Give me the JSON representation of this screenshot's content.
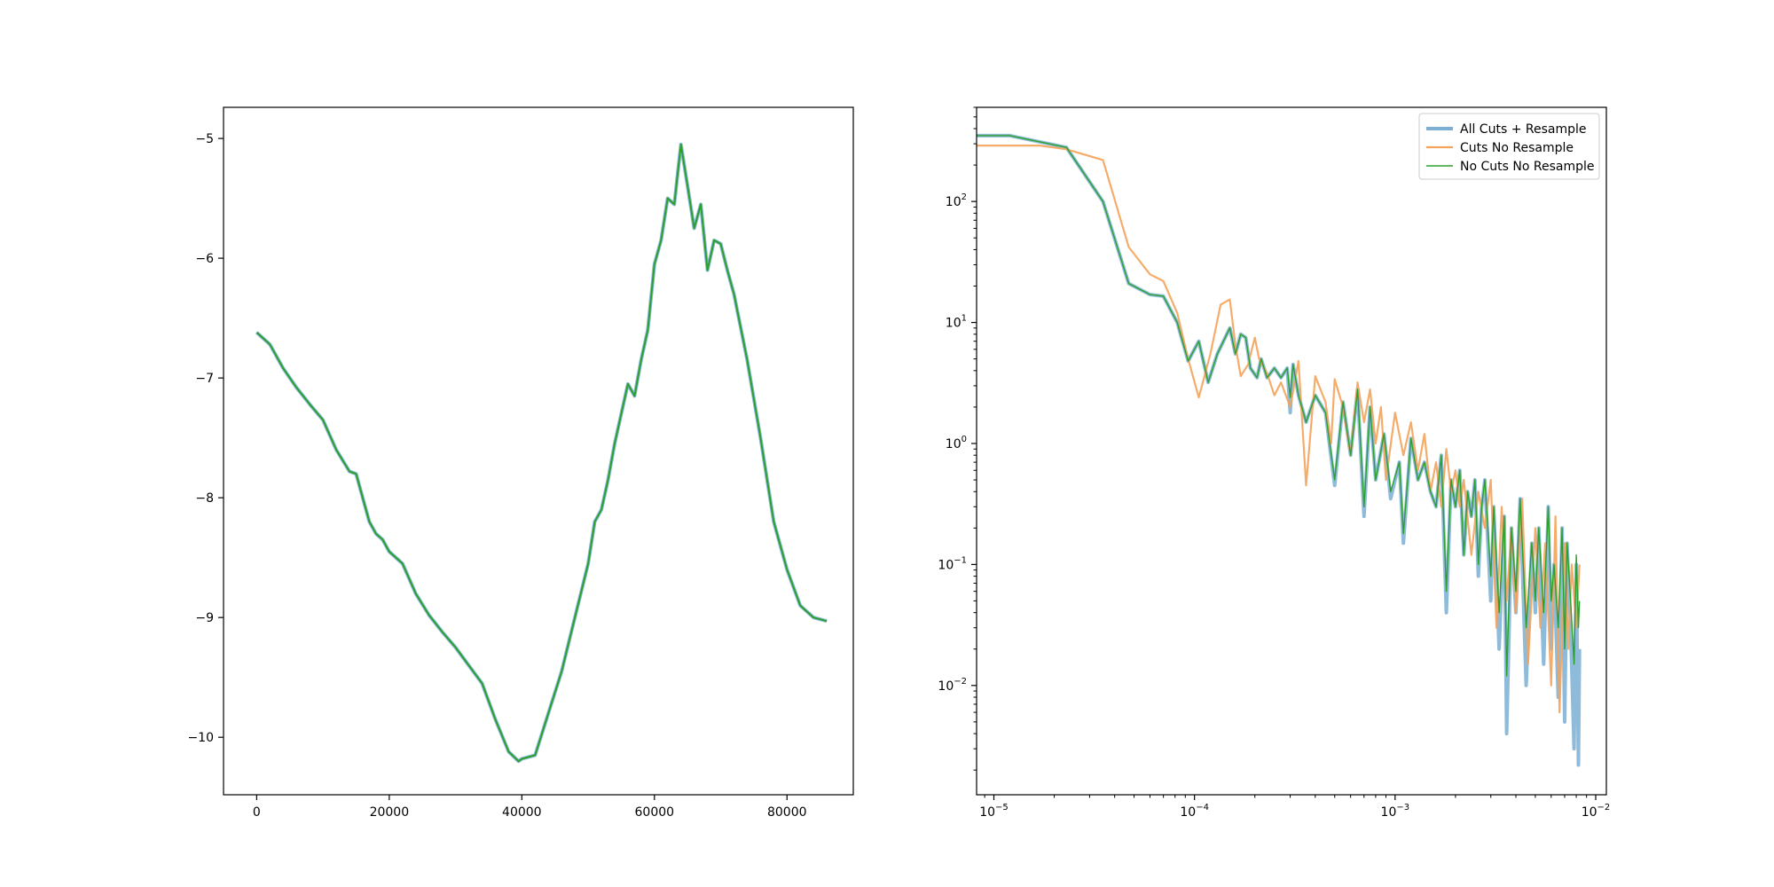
{
  "chart_data": [
    {
      "type": "line",
      "title": "",
      "xlabel": "",
      "ylabel": "",
      "xlim": [
        -5000,
        90000
      ],
      "ylim": [
        -10.48,
        -4.74
      ],
      "xscale": "linear",
      "yscale": "linear",
      "grid": false,
      "x_ticks": [
        0,
        20000,
        40000,
        60000,
        80000
      ],
      "x_tick_labels": [
        "0",
        "20000",
        "40000",
        "60000",
        "80000"
      ],
      "y_ticks": [
        -5,
        -6,
        -7,
        -8,
        -9,
        -10
      ],
      "y_tick_labels": [
        "−5",
        "−6",
        "−7",
        "−8",
        "−9",
        "−10"
      ],
      "series": [
        {
          "color": "#7bafd4",
          "x": [
            0,
            2000,
            4000,
            6000,
            8000,
            10000,
            12000,
            14000,
            15000,
            16000,
            17000,
            18000,
            19000,
            20000,
            22000,
            24000,
            26000,
            28000,
            30000,
            32000,
            34000,
            36000,
            38000,
            39500,
            40000,
            42000,
            44000,
            46000,
            48000,
            50000,
            51000,
            52000,
            53000,
            54000,
            55000,
            56000,
            57000,
            58000,
            59000,
            60000,
            61000,
            62000,
            63000,
            63500,
            64000,
            65000,
            66000,
            67000,
            68000,
            69000,
            70000,
            71000,
            72000,
            74000,
            76000,
            78000,
            80000,
            82000,
            84000,
            86000
          ],
          "y": [
            -6.62,
            -6.72,
            -6.92,
            -7.08,
            -7.22,
            -7.35,
            -7.6,
            -7.78,
            -7.8,
            -8.0,
            -8.2,
            -8.3,
            -8.35,
            -8.45,
            -8.55,
            -8.8,
            -8.98,
            -9.12,
            -9.25,
            -9.4,
            -9.55,
            -9.85,
            -10.12,
            -10.2,
            -10.18,
            -10.15,
            -9.8,
            -9.45,
            -9.0,
            -8.55,
            -8.2,
            -8.1,
            -7.85,
            -7.55,
            -7.3,
            -7.05,
            -7.15,
            -6.85,
            -6.6,
            -6.05,
            -5.85,
            -5.5,
            -5.55,
            -5.3,
            -5.05,
            -5.4,
            -5.75,
            -5.55,
            -6.1,
            -5.85,
            -5.88,
            -6.1,
            -6.3,
            -6.85,
            -7.5,
            -8.2,
            -8.6,
            -8.9,
            -9.0,
            -9.03
          ]
        },
        {
          "color": "#2ca02c",
          "x": [
            0,
            2000,
            4000,
            6000,
            8000,
            10000,
            12000,
            14000,
            15000,
            16000,
            17000,
            18000,
            19000,
            20000,
            22000,
            24000,
            26000,
            28000,
            30000,
            32000,
            34000,
            36000,
            38000,
            39500,
            40000,
            42000,
            44000,
            46000,
            48000,
            50000,
            51000,
            52000,
            53000,
            54000,
            55000,
            56000,
            57000,
            58000,
            59000,
            60000,
            61000,
            62000,
            63000,
            63500,
            64000,
            65000,
            66000,
            67000,
            68000,
            69000,
            70000,
            71000,
            72000,
            74000,
            76000,
            78000,
            80000,
            82000,
            84000,
            86000
          ],
          "y": [
            -6.62,
            -6.72,
            -6.92,
            -7.08,
            -7.22,
            -7.35,
            -7.6,
            -7.78,
            -7.8,
            -8.0,
            -8.2,
            -8.3,
            -8.35,
            -8.45,
            -8.55,
            -8.8,
            -8.98,
            -9.12,
            -9.25,
            -9.4,
            -9.55,
            -9.85,
            -10.12,
            -10.2,
            -10.18,
            -10.15,
            -9.8,
            -9.45,
            -9.0,
            -8.55,
            -8.2,
            -8.1,
            -7.85,
            -7.55,
            -7.3,
            -7.05,
            -7.15,
            -6.85,
            -6.6,
            -6.05,
            -5.85,
            -5.5,
            -5.55,
            -5.3,
            -5.05,
            -5.4,
            -5.75,
            -5.55,
            -6.1,
            -5.85,
            -5.88,
            -6.1,
            -6.3,
            -6.85,
            -7.5,
            -8.2,
            -8.6,
            -8.9,
            -9.0,
            -9.03
          ]
        }
      ]
    },
    {
      "type": "line",
      "title": "",
      "xlabel": "",
      "ylabel": "",
      "xlim": [
        8.2e-06,
        0.0113
      ],
      "ylim": [
        0.00125,
        600
      ],
      "xscale": "log",
      "yscale": "log",
      "grid": false,
      "legend_position": "top-right",
      "x_ticks": [
        1e-05,
        0.0001,
        0.001,
        0.01
      ],
      "x_tick_labels": [
        "10",
        "10",
        "10",
        "10"
      ],
      "x_tick_exponents": [
        "−5",
        "−4",
        "−3",
        "−2"
      ],
      "y_ticks": [
        0.01,
        0.1,
        1,
        10,
        100
      ],
      "y_tick_labels": [
        "10",
        "10",
        "10",
        "10",
        "10"
      ],
      "y_tick_exponents": [
        "−2",
        "−1",
        "0",
        "1",
        "2"
      ],
      "series": [
        {
          "name": "All Cuts + Resample",
          "color": "#7bafd4",
          "x": [
            8.2e-06,
            1.2e-05,
            2.3e-05,
            3.5e-05,
            4.7e-05,
            6e-05,
            7e-05,
            8.2e-05,
            9.3e-05,
            0.000105,
            0.000117,
            0.00013,
            0.00015,
            0.00016,
            0.00017,
            0.00018,
            0.00019,
            0.000205,
            0.000215,
            0.00023,
            0.00025,
            0.00027,
            0.00029,
            0.0003,
            0.00031,
            0.00033,
            0.00036,
            0.0004,
            0.00045,
            0.0005,
            0.00055,
            0.0006,
            0.00065,
            0.0007,
            0.00075,
            0.0008,
            0.00088,
            0.00095,
            0.00105,
            0.0011,
            0.0012,
            0.0013,
            0.0014,
            0.0015,
            0.0016,
            0.0017,
            0.0018,
            0.0019,
            0.002,
            0.0021,
            0.0022,
            0.0023,
            0.0024,
            0.0025,
            0.0026,
            0.0027,
            0.0028,
            0.003,
            0.0031,
            0.0033,
            0.0035,
            0.0036,
            0.0038,
            0.004,
            0.0042,
            0.0045,
            0.0048,
            0.005,
            0.0052,
            0.0055,
            0.0058,
            0.006,
            0.0062,
            0.0065,
            0.0068,
            0.007,
            0.0072,
            0.0075,
            0.0078,
            0.008,
            0.0082,
            0.0083
          ],
          "y": [
            350,
            350,
            280,
            100,
            21,
            17,
            16.5,
            10,
            4.8,
            7,
            3.2,
            5.5,
            9,
            5.5,
            8,
            7.5,
            4.2,
            3.5,
            5,
            3.5,
            4.2,
            3.5,
            4.2,
            1.8,
            4.5,
            2.5,
            1.5,
            2.5,
            1.8,
            0.45,
            2.2,
            0.8,
            2.8,
            0.25,
            2.0,
            0.5,
            1.2,
            0.35,
            0.7,
            0.15,
            1.1,
            0.5,
            0.7,
            0.4,
            0.3,
            0.8,
            0.04,
            0.5,
            0.3,
            0.6,
            0.12,
            0.4,
            0.25,
            0.5,
            0.08,
            0.3,
            0.5,
            0.05,
            0.3,
            0.02,
            0.25,
            0.004,
            0.2,
            0.04,
            0.35,
            0.01,
            0.15,
            0.04,
            0.2,
            0.015,
            0.3,
            0.02,
            0.1,
            0.008,
            0.2,
            0.005,
            0.15,
            0.03,
            0.003,
            0.1,
            0.0022,
            0.02
          ]
        },
        {
          "name": "Cuts No Resample",
          "color": "#f4a35a",
          "x": [
            8.2e-06,
            1.7e-05,
            2.3e-05,
            3.5e-05,
            4.7e-05,
            6e-05,
            7e-05,
            8.2e-05,
            9.3e-05,
            0.000105,
            0.00012,
            0.000135,
            0.00015,
            0.00016,
            0.00017,
            0.000185,
            0.0002,
            0.00021,
            0.00023,
            0.00025,
            0.00027,
            0.0003,
            0.00033,
            0.00036,
            0.0004,
            0.00045,
            0.00048,
            0.0005,
            0.00055,
            0.0006,
            0.00065,
            0.0007,
            0.00075,
            0.0008,
            0.00085,
            0.0009,
            0.001,
            0.0011,
            0.0012,
            0.0013,
            0.0014,
            0.0015,
            0.0016,
            0.0017,
            0.0018,
            0.0019,
            0.002,
            0.0021,
            0.0022,
            0.0024,
            0.0026,
            0.0028,
            0.003,
            0.0032,
            0.0034,
            0.0036,
            0.0038,
            0.004,
            0.0043,
            0.0046,
            0.005,
            0.0053,
            0.0056,
            0.006,
            0.0063,
            0.0066,
            0.007,
            0.0073,
            0.0076,
            0.008,
            0.0083
          ],
          "y": [
            290,
            290,
            270,
            220,
            42,
            25,
            22,
            12,
            5,
            2.4,
            5.5,
            14,
            15.5,
            6.5,
            3.6,
            4.5,
            7.5,
            5,
            3.8,
            2.5,
            3.2,
            2.0,
            4.8,
            0.45,
            3.6,
            2.2,
            1.0,
            3.4,
            2.0,
            0.8,
            3.2,
            1.5,
            2.8,
            1.0,
            2.0,
            0.5,
            1.8,
            0.8,
            1.5,
            0.6,
            1.2,
            0.4,
            0.7,
            0.3,
            0.9,
            0.4,
            0.6,
            0.3,
            0.5,
            0.12,
            0.4,
            0.2,
            0.5,
            0.03,
            0.3,
            0.05,
            0.2,
            0.04,
            0.35,
            0.015,
            0.2,
            0.03,
            0.15,
            0.01,
            0.25,
            0.006,
            0.15,
            0.02,
            0.1,
            0.03,
            0.1
          ]
        },
        {
          "name": "No Cuts No Resample",
          "color": "#2ca02c",
          "x": [
            8.2e-06,
            1.2e-05,
            2.3e-05,
            3.5e-05,
            4.7e-05,
            6e-05,
            7e-05,
            8.2e-05,
            9.3e-05,
            0.000105,
            0.000117,
            0.00013,
            0.00015,
            0.00016,
            0.00017,
            0.00018,
            0.00019,
            0.000205,
            0.000215,
            0.00023,
            0.00025,
            0.00027,
            0.00029,
            0.0003,
            0.00031,
            0.00033,
            0.00036,
            0.0004,
            0.00045,
            0.0005,
            0.00055,
            0.0006,
            0.00065,
            0.0007,
            0.00075,
            0.0008,
            0.00088,
            0.00095,
            0.00105,
            0.0011,
            0.0012,
            0.0013,
            0.0014,
            0.0015,
            0.0016,
            0.0017,
            0.0018,
            0.0019,
            0.002,
            0.0021,
            0.0022,
            0.0023,
            0.0024,
            0.0025,
            0.0026,
            0.0027,
            0.0028,
            0.003,
            0.0031,
            0.0033,
            0.0035,
            0.0036,
            0.0038,
            0.004,
            0.0042,
            0.0045,
            0.0048,
            0.005,
            0.0052,
            0.0055,
            0.0058,
            0.006,
            0.0062,
            0.0065,
            0.0068,
            0.007,
            0.0072,
            0.0075,
            0.0078,
            0.008,
            0.0082,
            0.0083
          ],
          "y": [
            350,
            350,
            280,
            100,
            21,
            17,
            16.5,
            10,
            4.8,
            7,
            3.2,
            5.5,
            9,
            5.5,
            8,
            7.5,
            4.2,
            3.5,
            5,
            3.5,
            4.2,
            3.5,
            4.2,
            2.4,
            4.5,
            2.5,
            1.5,
            2.5,
            1.8,
            0.5,
            2.2,
            0.8,
            2.8,
            0.3,
            2.0,
            0.5,
            1.2,
            0.4,
            0.7,
            0.18,
            1.1,
            0.5,
            0.7,
            0.4,
            0.3,
            0.8,
            0.06,
            0.5,
            0.3,
            0.6,
            0.12,
            0.4,
            0.25,
            0.5,
            0.1,
            0.3,
            0.5,
            0.08,
            0.3,
            0.04,
            0.25,
            0.012,
            0.2,
            0.06,
            0.35,
            0.03,
            0.15,
            0.05,
            0.2,
            0.04,
            0.3,
            0.05,
            0.1,
            0.03,
            0.2,
            0.02,
            0.15,
            0.05,
            0.015,
            0.12,
            0.03,
            0.05
          ]
        }
      ]
    }
  ]
}
